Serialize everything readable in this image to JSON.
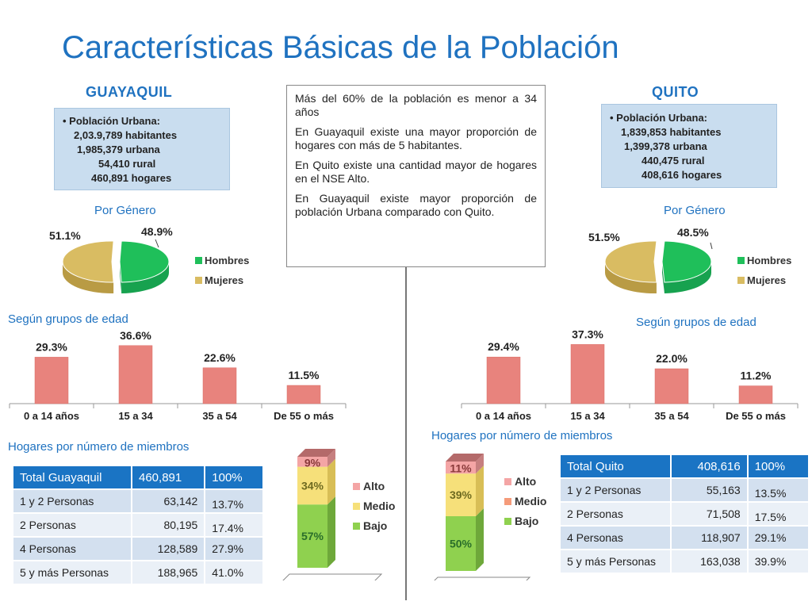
{
  "title": "Características Básicas de la Población",
  "guayaquil": {
    "name": "GUAYAQUIL",
    "pop_lines": [
      "• Población Urbana:",
      "2,03.9,789 habitantes",
      "1,985,379 urbana",
      "54,410 rural",
      "460,891 hogares"
    ],
    "gender_label": "Por Género",
    "age_label": "Según grupos de edad",
    "households_label": "Hogares por número de miembros",
    "table": {
      "header": [
        "Total  Guayaquil",
        "460,891",
        "100%"
      ],
      "rows": [
        [
          "1 y 2 Personas",
          "63,142",
          "13.7%"
        ],
        [
          "2 Personas",
          "80,195",
          "17.4%"
        ],
        [
          "4 Personas",
          "128,589",
          "27.9%"
        ],
        [
          "5 y más Personas",
          "188,965",
          "41.0%"
        ]
      ]
    }
  },
  "quito": {
    "name": "QUITO",
    "pop_lines": [
      "• Población Urbana:",
      "1,839,853 habitantes",
      "1,399,378 urbana",
      "440,475 rural",
      "408,616 hogares"
    ],
    "gender_label": "Por Género",
    "age_label": "Según grupos de edad",
    "households_label": "Hogares por número de miembros",
    "table": {
      "header": [
        "Total  Quito",
        "408,616",
        "100%"
      ],
      "rows": [
        [
          "1 y 2 Personas",
          "55,163",
          "13.5%"
        ],
        [
          "2 Personas",
          "71,508",
          "17.5%"
        ],
        [
          "4 Personas",
          "118,907",
          "29.1%"
        ],
        [
          "5 y más Personas",
          "163,038",
          "39.9%"
        ]
      ]
    }
  },
  "summary": [
    "Más del  60% de la población es menor a 34 años",
    "En Guayaquil existe una mayor proporción de hogares con más de 5 habitantes.",
    "En Quito existe una cantidad mayor de hogares en el NSE Alto.",
    "En Guayaquil existe mayor proporción de población Urbana comparado con Quito."
  ],
  "colors": {
    "title": "#1f72c0",
    "men": "#1fbf5a",
    "women": "#d9bc62",
    "bar": "#e8837d",
    "alto": "#f4a5a5",
    "medio": "#f6e07a",
    "bajo": "#8fd14f",
    "table_head": "#1a74c4"
  },
  "chart_data": [
    {
      "id": "gye-gender",
      "type": "pie",
      "title": "Por Género",
      "labels": [
        "Hombres",
        "Mujeres"
      ],
      "values": [
        48.9,
        51.1
      ],
      "value_labels": [
        "48.9%",
        "51.1%"
      ],
      "legend": "right"
    },
    {
      "id": "gye-age",
      "type": "bar",
      "title": "Según grupos de edad",
      "categories": [
        "0 a 14 años",
        "15 a 34",
        "35 a 54",
        "De 55 o más"
      ],
      "values": [
        29.3,
        36.6,
        22.6,
        11.5
      ],
      "value_labels": [
        "29.3%",
        "36.6%",
        "22.6%",
        "11.5%"
      ],
      "ylim": [
        0,
        40
      ]
    },
    {
      "id": "gye-nse",
      "type": "bar",
      "stacked": true,
      "series": [
        {
          "name": "Bajo",
          "values": [
            57
          ]
        },
        {
          "name": "Medio",
          "values": [
            34
          ]
        },
        {
          "name": "Alto",
          "values": [
            9
          ]
        }
      ],
      "value_labels": [
        "57%",
        "34%",
        "9%"
      ],
      "legend_order": [
        "Alto",
        "Medio",
        "Bajo"
      ],
      "legend": "right"
    },
    {
      "id": "uio-gender",
      "type": "pie",
      "title": "Por Género",
      "labels": [
        "Hombres",
        "Mujeres"
      ],
      "values": [
        48.5,
        51.5
      ],
      "value_labels": [
        "48.5%",
        "51.5%"
      ],
      "legend": "right"
    },
    {
      "id": "uio-age",
      "type": "bar",
      "title": "Según grupos de edad",
      "categories": [
        "0 a 14 años",
        "15 a 34",
        "35 a 54",
        "De 55 o más"
      ],
      "values": [
        29.4,
        37.3,
        22.0,
        11.2
      ],
      "value_labels": [
        "29.4%",
        "37.3%",
        "22.0%",
        "11.2%"
      ],
      "ylim": [
        0,
        40
      ]
    },
    {
      "id": "uio-nse",
      "type": "bar",
      "stacked": true,
      "series": [
        {
          "name": "Bajo",
          "values": [
            50
          ]
        },
        {
          "name": "Medio",
          "values": [
            39
          ]
        },
        {
          "name": "Alto",
          "values": [
            11
          ]
        }
      ],
      "value_labels": [
        "50%",
        "39%",
        "11%"
      ],
      "legend_order": [
        "Alto",
        "Medio",
        "Bajo"
      ],
      "legend": "right"
    }
  ]
}
